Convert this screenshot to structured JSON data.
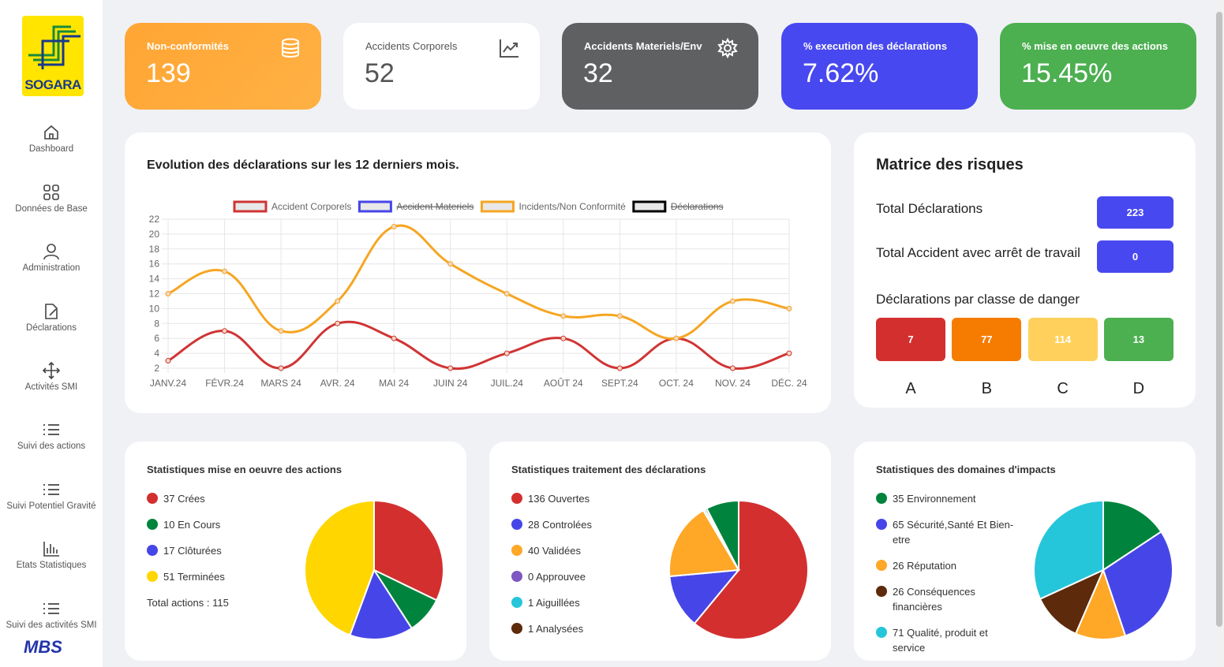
{
  "sidebar": {
    "logo": "SOGARA",
    "nav": [
      "Dashboard",
      "Données de Base",
      "Administration",
      "Déclarations",
      "Activités SMI",
      "Suivi des actions",
      "Suivi Potentiel Gravité",
      "Etats Statistiques",
      "Suivi des activités SMI"
    ],
    "footer_logo": "MBS"
  },
  "kpis": [
    {
      "label": "Non-conformités",
      "value": "139"
    },
    {
      "label": "Accidents Corporels",
      "value": "52"
    },
    {
      "label": "Accidents Materiels/Env",
      "value": "32"
    },
    {
      "label": "% execution des déclarations",
      "value": "7.62%"
    },
    {
      "label": "% mise en oeuvre des actions",
      "value": "15.45%"
    }
  ],
  "chart_data": [
    {
      "type": "line",
      "title": "Evolution des déclarations sur les 12 derniers mois.",
      "categories": [
        "JANV.24",
        "FÉVR.24",
        "MARS 24",
        "AVR. 24",
        "MAI  24",
        "JUIN 24",
        "JUIL.24",
        "AOÛT 24",
        "SEPT.24",
        "OCT. 24",
        "NOV. 24",
        "DÉC. 24"
      ],
      "series": [
        {
          "name": "Accident Corporels",
          "color": "#d03434",
          "values": [
            3,
            7,
            2,
            8,
            6,
            2,
            4,
            6,
            2,
            6,
            2,
            4
          ]
        },
        {
          "name": "Accident Materiels",
          "color": "#4646e8",
          "hidden": true
        },
        {
          "name": "Incidents/Non Conformité",
          "color": "#f5a623",
          "values": [
            12,
            15,
            7,
            11,
            21,
            16,
            12,
            9,
            9,
            6,
            11,
            10
          ]
        },
        {
          "name": "Déclarations",
          "color": "#000000",
          "hidden": true
        }
      ],
      "ylim": [
        2,
        22
      ],
      "yticks": [
        2,
        4,
        6,
        8,
        10,
        12,
        14,
        16,
        18,
        20,
        22
      ],
      "grid": true
    },
    {
      "type": "pie",
      "title": "Statistiques mise en oeuvre des actions",
      "categories": [
        "Crées",
        "En Cours",
        "Clôturées",
        "Terminées"
      ],
      "values": [
        37,
        10,
        17,
        51
      ],
      "colors": [
        "#d32f2f",
        "#00843d",
        "#4646e8",
        "#ffd600"
      ],
      "total_label": "Total actions :",
      "total": 115
    },
    {
      "type": "pie",
      "title": "Statistiques traitement des déclarations",
      "categories": [
        "Ouvertes",
        "Controlées",
        "Validées",
        "Approuvee",
        "Aiguillées",
        "Analysées",
        null
      ],
      "values": [
        136,
        28,
        40,
        0,
        1,
        1,
        17
      ],
      "colors": [
        "#d32f2f",
        "#4646e8",
        "#ffa726",
        "#7e57c2",
        "#26c6da",
        "#5d2a0c",
        "#00843d"
      ]
    },
    {
      "type": "pie",
      "title": "Statistiques des domaines d'impacts",
      "categories": [
        "Environnement",
        "Sécurité,Santé Et Bien-etre",
        "Réputation",
        "Conséquences financières",
        "Qualité, produit et service"
      ],
      "values": [
        35,
        65,
        26,
        26,
        71
      ],
      "colors": [
        "#00843d",
        "#4646e8",
        "#ffa726",
        "#5d2a0c",
        "#26c6da"
      ]
    }
  ],
  "risk_matrix": {
    "title": "Matrice des risques",
    "total_declarations": {
      "label": "Total Déclarations",
      "value": 223
    },
    "total_accidents": {
      "label": "Total Accident avec arrêt de travail",
      "value": 0
    },
    "classes_title": "Déclarations par classe de danger",
    "classes": [
      {
        "name": "A",
        "value": 7,
        "color": "#d32f2f"
      },
      {
        "name": "B",
        "value": 77,
        "color": "#f57c00"
      },
      {
        "name": "C",
        "value": 114,
        "color": "#ffd15c"
      },
      {
        "name": "D",
        "value": 13,
        "color": "#4caf50"
      }
    ]
  }
}
